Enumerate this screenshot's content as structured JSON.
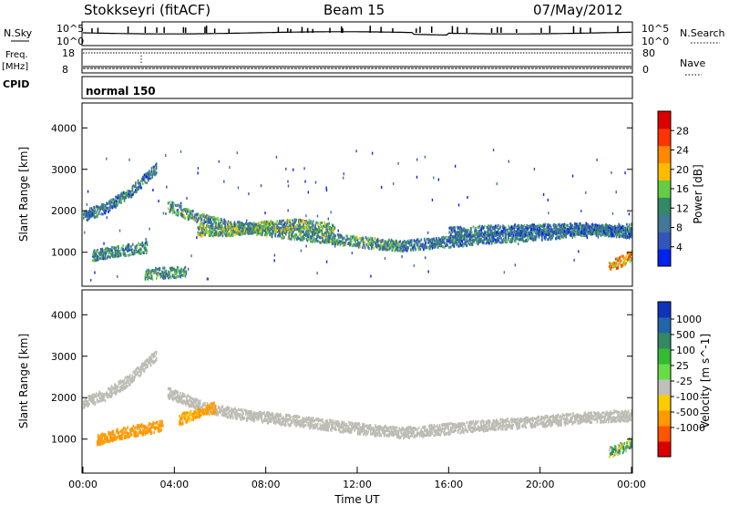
{
  "header": {
    "station": "Stokkseyri (fitACF)",
    "beam": "Beam 15",
    "date": "07/May/2012"
  },
  "top_panels": {
    "nsky_label": "N.Sky",
    "nsky_ticks": [
      "10^5",
      "10^0"
    ],
    "nsearch_label": "N.Search",
    "nsearch_ticks": [
      "10^5",
      "10^0"
    ],
    "freq_label": "Freq.",
    "freq_unit": "[MHz]",
    "freq_ticks": [
      18,
      8
    ],
    "nave_label": "Nave",
    "nave_ticks": [
      80,
      0
    ],
    "cpid_label": "CPID",
    "cpid_value": "normal 150"
  },
  "chart_data": [
    {
      "type": "heatmap",
      "name": "power",
      "ylabel": "Slant Range [km]",
      "ylim": [
        180,
        4600
      ],
      "yticks": [
        1000,
        2000,
        3000,
        4000
      ],
      "xlim": [
        0,
        24
      ],
      "colorbar": {
        "label": "Power [dB]",
        "ticks": [
          4,
          8,
          12,
          16,
          20,
          24,
          28
        ],
        "range": [
          0,
          32
        ],
        "colors": [
          "#0022ee",
          "#3355bb",
          "#447799",
          "#338866",
          "#66cc44",
          "#ffbb00",
          "#ff8800",
          "#ff3300",
          "#dd0000"
        ]
      },
      "echo_tracks": [
        {
          "t": [
            0.0,
            1.0,
            2.0,
            2.6,
            3.2
          ],
          "r": [
            1900,
            2100,
            2450,
            2750,
            3050
          ],
          "intensity": 0.35
        },
        {
          "t": [
            3.7,
            5.0,
            6.5,
            8.0,
            9.5,
            11.0,
            12.5,
            14.0
          ],
          "r": [
            2150,
            1850,
            1650,
            1550,
            1450,
            1350,
            1250,
            1180
          ],
          "intensity": 0.45
        },
        {
          "t": [
            5.0,
            6.5,
            8.0,
            9.5,
            11.0
          ],
          "r": [
            1550,
            1550,
            1650,
            1700,
            1600
          ],
          "intensity": 0.55
        },
        {
          "t": [
            14.0,
            16.0,
            18.0,
            20.0,
            22.0,
            24.0
          ],
          "r": [
            1180,
            1280,
            1380,
            1450,
            1550,
            1600
          ],
          "intensity": 0.35
        },
        {
          "t": [
            16.0,
            18.0,
            20.0,
            22.0,
            24.0
          ],
          "r": [
            1500,
            1550,
            1580,
            1600,
            1500
          ],
          "intensity": 0.3
        },
        {
          "t": [
            0.4,
            1.5,
            2.8
          ],
          "r": [
            950,
            1050,
            1150
          ],
          "intensity": 0.4
        },
        {
          "t": [
            2.7,
            3.6,
            4.5
          ],
          "r": [
            500,
            530,
            560
          ],
          "intensity": 0.45
        },
        {
          "t": [
            23.0,
            23.5,
            24.0
          ],
          "r": [
            700,
            800,
            950
          ],
          "intensity": 0.9
        }
      ]
    },
    {
      "type": "heatmap",
      "name": "velocity",
      "ylabel": "Slant Range [km]",
      "xlabel": "Time UT",
      "ylim": [
        180,
        4600
      ],
      "yticks": [
        1000,
        2000,
        3000,
        4000
      ],
      "xlim": [
        0,
        24
      ],
      "xticks": [
        "00:00",
        "04:00",
        "08:00",
        "12:00",
        "16:00",
        "20:00",
        "00:00"
      ],
      "colorbar": {
        "label": "Velocity [m s^-1]",
        "ticks": [
          1000,
          500,
          100,
          25,
          -25,
          -100,
          -500,
          -1000
        ],
        "colors": [
          "#1133bb",
          "#2266aa",
          "#338866",
          "#33bb33",
          "#66dd44",
          "#c0c0b8",
          "#ffcc00",
          "#ff9900",
          "#ff5500",
          "#dd0000"
        ]
      },
      "scatter_color": "#bcbcb4",
      "echo_tracks": [
        {
          "t": [
            0.0,
            1.0,
            2.0,
            2.6,
            3.2
          ],
          "r": [
            1900,
            2100,
            2450,
            2750,
            3050
          ],
          "value": 0
        },
        {
          "t": [
            3.7,
            5.0,
            6.5,
            8.0,
            9.5,
            11.0,
            12.5,
            14.0
          ],
          "r": [
            2150,
            1850,
            1650,
            1550,
            1450,
            1350,
            1250,
            1180
          ],
          "value": 0
        },
        {
          "t": [
            14.0,
            16.0,
            18.0,
            20.0,
            22.0,
            24.0
          ],
          "r": [
            1180,
            1280,
            1380,
            1450,
            1550,
            1600
          ],
          "value": 0
        },
        {
          "t": [
            0.6,
            1.5,
            2.5,
            3.5
          ],
          "r": [
            1000,
            1150,
            1250,
            1350
          ],
          "value": -300
        },
        {
          "t": [
            4.2,
            5.0,
            5.8
          ],
          "r": [
            1500,
            1650,
            1800
          ],
          "value": -200
        },
        {
          "t": [
            23.0,
            23.5,
            24.0
          ],
          "r": [
            700,
            800,
            950
          ],
          "value": 60
        }
      ]
    }
  ]
}
